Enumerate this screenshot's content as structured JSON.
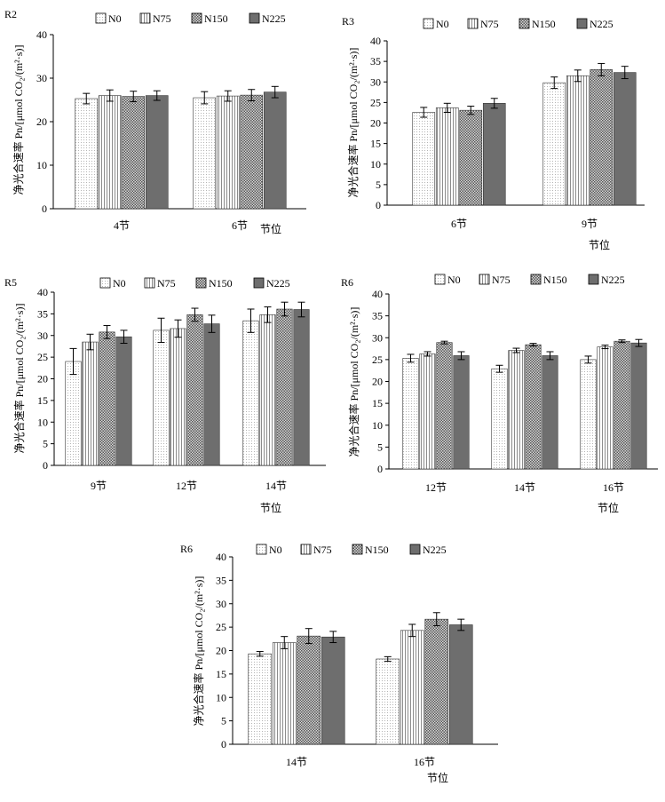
{
  "chart_data": [
    {
      "type": "bar",
      "panel_label": "R2",
      "categories": [
        "4节",
        "6节"
      ],
      "series": [
        {
          "name": "N0",
          "values": [
            25.3,
            25.5
          ],
          "errors": [
            1.2,
            1.4
          ]
        },
        {
          "name": "N75",
          "values": [
            26.0,
            25.9
          ],
          "errors": [
            1.3,
            1.2
          ]
        },
        {
          "name": "N150",
          "values": [
            25.8,
            26.1
          ],
          "errors": [
            1.2,
            1.3
          ]
        },
        {
          "name": "N225",
          "values": [
            26.0,
            26.8
          ],
          "errors": [
            1.1,
            1.3
          ]
        }
      ],
      "ylabel": "净光合速率 Pn/[μmol CO₂/(m²·s)]",
      "xlabel": "节位",
      "ylim": [
        0,
        40
      ],
      "yticks": [
        0,
        10,
        20,
        30,
        40
      ],
      "legend_position": "top"
    },
    {
      "type": "bar",
      "panel_label": "R3",
      "categories": [
        "6节",
        "9节"
      ],
      "series": [
        {
          "name": "N0",
          "values": [
            22.6,
            29.8
          ],
          "errors": [
            1.2,
            1.4
          ]
        },
        {
          "name": "N75",
          "values": [
            23.7,
            31.5
          ],
          "errors": [
            1.1,
            1.4
          ]
        },
        {
          "name": "N150",
          "values": [
            23.1,
            33.0
          ],
          "errors": [
            1.0,
            1.5
          ]
        },
        {
          "name": "N225",
          "values": [
            24.8,
            32.3
          ],
          "errors": [
            1.2,
            1.5
          ]
        }
      ],
      "ylabel": "净光合速率 Pn/[μmol CO₂/(m²·s)]",
      "xlabel": "节位",
      "ylim": [
        0,
        40
      ],
      "yticks": [
        0,
        5,
        10,
        15,
        20,
        25,
        30,
        35,
        40
      ],
      "legend_position": "top"
    },
    {
      "type": "bar",
      "panel_label": "R5",
      "categories": [
        "9节",
        "12节",
        "14节"
      ],
      "series": [
        {
          "name": "N0",
          "values": [
            24.0,
            31.2,
            33.4
          ],
          "errors": [
            3.0,
            2.8,
            2.7
          ]
        },
        {
          "name": "N75",
          "values": [
            28.5,
            31.6,
            34.8
          ],
          "errors": [
            1.8,
            2.0,
            1.8
          ]
        },
        {
          "name": "N150",
          "values": [
            30.8,
            34.8,
            36.1
          ],
          "errors": [
            1.5,
            1.5,
            1.6
          ]
        },
        {
          "name": "N225",
          "values": [
            29.7,
            32.7,
            36.0
          ],
          "errors": [
            1.5,
            2.0,
            1.7
          ]
        }
      ],
      "ylabel": "净光合速率 Pn/[μmol CO₂/(m²·s)]",
      "xlabel": "节位",
      "ylim": [
        0,
        40
      ],
      "yticks": [
        0,
        5,
        10,
        15,
        20,
        25,
        30,
        35,
        40
      ],
      "legend_position": "top"
    },
    {
      "type": "bar",
      "panel_label": "R6",
      "categories": [
        "12节",
        "14节",
        "16节"
      ],
      "series": [
        {
          "name": "N0",
          "values": [
            25.3,
            22.9,
            25.0
          ],
          "errors": [
            0.9,
            0.8,
            0.8
          ]
        },
        {
          "name": "N75",
          "values": [
            26.3,
            27.1,
            27.9
          ],
          "errors": [
            0.5,
            0.5,
            0.4
          ]
        },
        {
          "name": "N150",
          "values": [
            28.9,
            28.4,
            29.2
          ],
          "errors": [
            0.3,
            0.3,
            0.3
          ]
        },
        {
          "name": "N225",
          "values": [
            25.9,
            25.9,
            28.8
          ],
          "errors": [
            0.9,
            0.9,
            0.8
          ]
        }
      ],
      "ylabel": "净光合速率 Pn/[μmol CO₂/(m²·s)]",
      "xlabel": "节位",
      "ylim": [
        0,
        40
      ],
      "yticks": [
        0,
        5,
        10,
        15,
        20,
        25,
        30,
        35,
        40
      ],
      "legend_position": "top"
    },
    {
      "type": "bar",
      "panel_label": "R6",
      "categories": [
        "14节",
        "16节"
      ],
      "series": [
        {
          "name": "N0",
          "values": [
            19.3,
            18.2
          ],
          "errors": [
            0.5,
            0.5
          ]
        },
        {
          "name": "N75",
          "values": [
            21.7,
            24.3
          ],
          "errors": [
            1.3,
            1.3
          ]
        },
        {
          "name": "N150",
          "values": [
            23.1,
            26.7
          ],
          "errors": [
            1.6,
            1.4
          ]
        },
        {
          "name": "N225",
          "values": [
            22.9,
            25.5
          ],
          "errors": [
            1.2,
            1.2
          ]
        }
      ],
      "ylabel": "净光合速率 Pn/[μmol CO₂/(m²·s)]",
      "xlabel": "节位",
      "ylim": [
        0,
        40
      ],
      "yticks": [
        0,
        5,
        10,
        15,
        20,
        25,
        30,
        35,
        40
      ],
      "legend_position": "top"
    }
  ],
  "series_styles": {
    "N0": "pattern-dots-fine",
    "N75": "pattern-vertical-lines",
    "N150": "pattern-crosshatch-dense",
    "N225": "solid-dark-gray"
  },
  "colors": {
    "ink": "#000000",
    "n225_fill": "#6e6e6e",
    "pattern_ink": "#555555"
  }
}
